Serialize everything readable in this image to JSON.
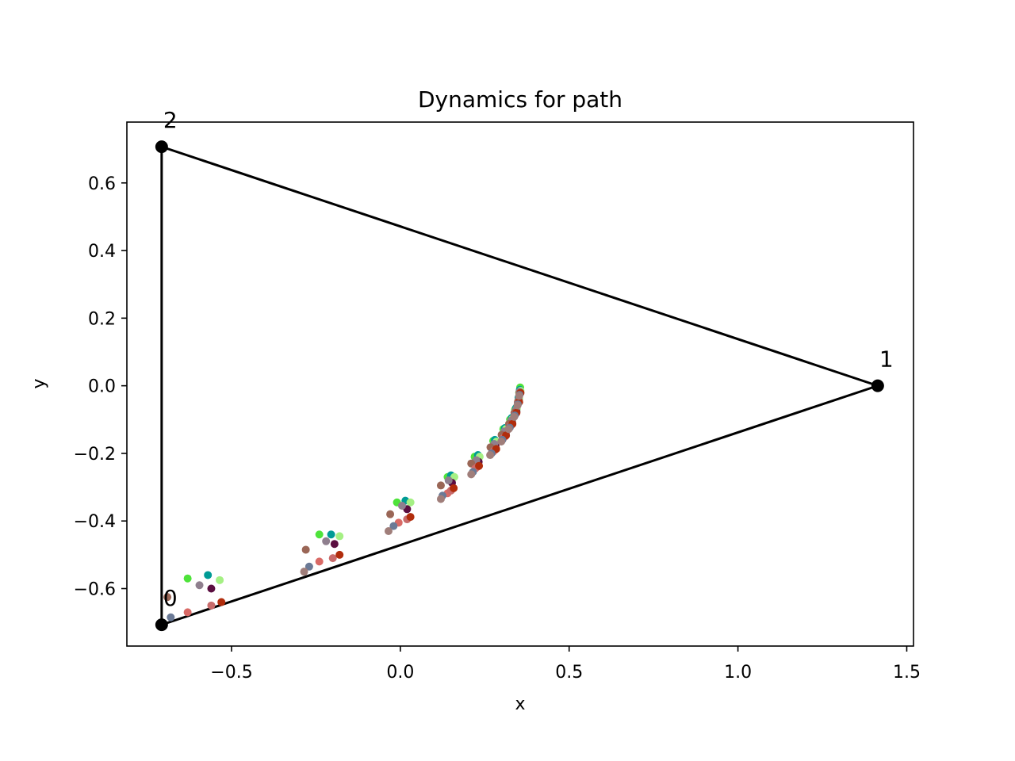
{
  "chart_data": {
    "type": "scatter",
    "title": "Dynamics for path",
    "xlabel": "x",
    "ylabel": "y",
    "xlim": [
      -0.81,
      1.52
    ],
    "ylim": [
      -0.77,
      0.78
    ],
    "xticks": [
      -0.5,
      0.0,
      0.5,
      1.0,
      1.5
    ],
    "xtick_labels": [
      "−0.5",
      "0.0",
      "0.5",
      "1.0",
      "1.5"
    ],
    "yticks": [
      -0.6,
      -0.4,
      -0.2,
      0.0,
      0.2,
      0.4,
      0.6
    ],
    "ytick_labels": [
      "−0.6",
      "−0.4",
      "−0.2",
      "0.0",
      "0.2",
      "0.4",
      "0.6"
    ],
    "grid": false,
    "graph": {
      "vertices": [
        {
          "label": "0",
          "x": -0.707,
          "y": -0.707
        },
        {
          "label": "1",
          "x": 1.414,
          "y": 0.0
        },
        {
          "label": "2",
          "x": -0.707,
          "y": 0.707
        }
      ],
      "edges": [
        [
          0,
          1
        ],
        [
          1,
          2
        ],
        [
          2,
          0
        ]
      ],
      "color": "#000000"
    },
    "particles": [
      {
        "color": "#4ee33a",
        "points": [
          [
            -0.63,
            -0.57
          ],
          [
            -0.24,
            -0.44
          ],
          [
            -0.01,
            -0.345
          ],
          [
            0.14,
            -0.27
          ],
          [
            0.22,
            -0.21
          ],
          [
            0.275,
            -0.163
          ],
          [
            0.305,
            -0.128
          ],
          [
            0.325,
            -0.1
          ],
          [
            0.34,
            -0.07
          ],
          [
            0.35,
            -0.04
          ],
          [
            0.352,
            -0.02
          ],
          [
            0.355,
            -0.005
          ]
        ]
      },
      {
        "color": "#009b95",
        "points": [
          [
            -0.57,
            -0.56
          ],
          [
            -0.205,
            -0.44
          ],
          [
            0.015,
            -0.34
          ],
          [
            0.15,
            -0.265
          ],
          [
            0.23,
            -0.205
          ],
          [
            0.28,
            -0.16
          ],
          [
            0.31,
            -0.125
          ],
          [
            0.33,
            -0.095
          ],
          [
            0.343,
            -0.065
          ],
          [
            0.35,
            -0.035
          ],
          [
            0.354,
            -0.012
          ]
        ]
      },
      {
        "color": "#a5f084",
        "points": [
          [
            -0.535,
            -0.575
          ],
          [
            -0.18,
            -0.445
          ],
          [
            0.03,
            -0.345
          ],
          [
            0.16,
            -0.27
          ],
          [
            0.235,
            -0.21
          ],
          [
            0.285,
            -0.165
          ],
          [
            0.313,
            -0.128
          ],
          [
            0.332,
            -0.098
          ],
          [
            0.345,
            -0.068
          ],
          [
            0.352,
            -0.038
          ],
          [
            0.356,
            -0.015
          ]
        ]
      },
      {
        "color": "#5a0e40",
        "points": [
          [
            -0.56,
            -0.6
          ],
          [
            -0.195,
            -0.468
          ],
          [
            0.02,
            -0.365
          ],
          [
            0.153,
            -0.287
          ],
          [
            0.232,
            -0.225
          ],
          [
            0.282,
            -0.178
          ],
          [
            0.312,
            -0.14
          ],
          [
            0.331,
            -0.108
          ],
          [
            0.344,
            -0.076
          ],
          [
            0.351,
            -0.045
          ],
          [
            0.355,
            -0.02
          ]
        ]
      },
      {
        "color": "#8f7f8e",
        "points": [
          [
            -0.595,
            -0.59
          ],
          [
            -0.22,
            -0.46
          ],
          [
            0.005,
            -0.355
          ],
          [
            0.143,
            -0.28
          ],
          [
            0.225,
            -0.22
          ],
          [
            0.278,
            -0.172
          ],
          [
            0.308,
            -0.135
          ],
          [
            0.328,
            -0.103
          ],
          [
            0.342,
            -0.072
          ],
          [
            0.35,
            -0.042
          ],
          [
            0.353,
            -0.018
          ]
        ]
      },
      {
        "color": "#9a6656",
        "points": [
          [
            -0.69,
            -0.625
          ],
          [
            -0.28,
            -0.485
          ],
          [
            -0.03,
            -0.38
          ],
          [
            0.12,
            -0.295
          ],
          [
            0.21,
            -0.23
          ],
          [
            0.267,
            -0.182
          ],
          [
            0.3,
            -0.145
          ],
          [
            0.322,
            -0.113
          ],
          [
            0.338,
            -0.08
          ],
          [
            0.348,
            -0.048
          ],
          [
            0.353,
            -0.022
          ]
        ]
      },
      {
        "color": "#d96a66",
        "points": [
          [
            -0.63,
            -0.67
          ],
          [
            -0.24,
            -0.52
          ],
          [
            -0.005,
            -0.405
          ],
          [
            0.14,
            -0.318
          ],
          [
            0.222,
            -0.245
          ],
          [
            0.275,
            -0.195
          ],
          [
            0.305,
            -0.155
          ],
          [
            0.326,
            -0.12
          ],
          [
            0.34,
            -0.085
          ],
          [
            0.349,
            -0.052
          ],
          [
            0.353,
            -0.025
          ]
        ]
      },
      {
        "color": "#c86b6b",
        "points": [
          [
            -0.56,
            -0.65
          ],
          [
            -0.2,
            -0.51
          ],
          [
            0.02,
            -0.395
          ],
          [
            0.15,
            -0.31
          ],
          [
            0.228,
            -0.24
          ],
          [
            0.28,
            -0.19
          ],
          [
            0.31,
            -0.15
          ],
          [
            0.329,
            -0.116
          ],
          [
            0.342,
            -0.082
          ],
          [
            0.35,
            -0.05
          ],
          [
            0.354,
            -0.023
          ]
        ]
      },
      {
        "color": "#b12d0c",
        "points": [
          [
            -0.53,
            -0.64
          ],
          [
            -0.18,
            -0.5
          ],
          [
            0.03,
            -0.388
          ],
          [
            0.158,
            -0.303
          ],
          [
            0.233,
            -0.237
          ],
          [
            0.284,
            -0.187
          ],
          [
            0.313,
            -0.147
          ],
          [
            0.332,
            -0.113
          ],
          [
            0.344,
            -0.08
          ],
          [
            0.352,
            -0.048
          ],
          [
            0.356,
            -0.021
          ]
        ]
      },
      {
        "color": "#6b7a96",
        "points": [
          [
            -0.68,
            -0.685
          ],
          [
            -0.27,
            -0.535
          ],
          [
            -0.02,
            -0.415
          ],
          [
            0.125,
            -0.325
          ],
          [
            0.215,
            -0.255
          ],
          [
            0.27,
            -0.2
          ],
          [
            0.302,
            -0.16
          ],
          [
            0.324,
            -0.124
          ],
          [
            0.339,
            -0.088
          ],
          [
            0.348,
            -0.055
          ],
          [
            0.353,
            -0.027
          ]
        ]
      },
      {
        "color": "#a07e7a",
        "points": [
          [
            -0.707,
            -0.707
          ],
          [
            -0.285,
            -0.55
          ],
          [
            -0.035,
            -0.43
          ],
          [
            0.12,
            -0.335
          ],
          [
            0.21,
            -0.262
          ],
          [
            0.266,
            -0.205
          ],
          [
            0.299,
            -0.165
          ],
          [
            0.321,
            -0.128
          ],
          [
            0.337,
            -0.092
          ],
          [
            0.347,
            -0.058
          ],
          [
            0.352,
            -0.03
          ]
        ]
      }
    ]
  }
}
